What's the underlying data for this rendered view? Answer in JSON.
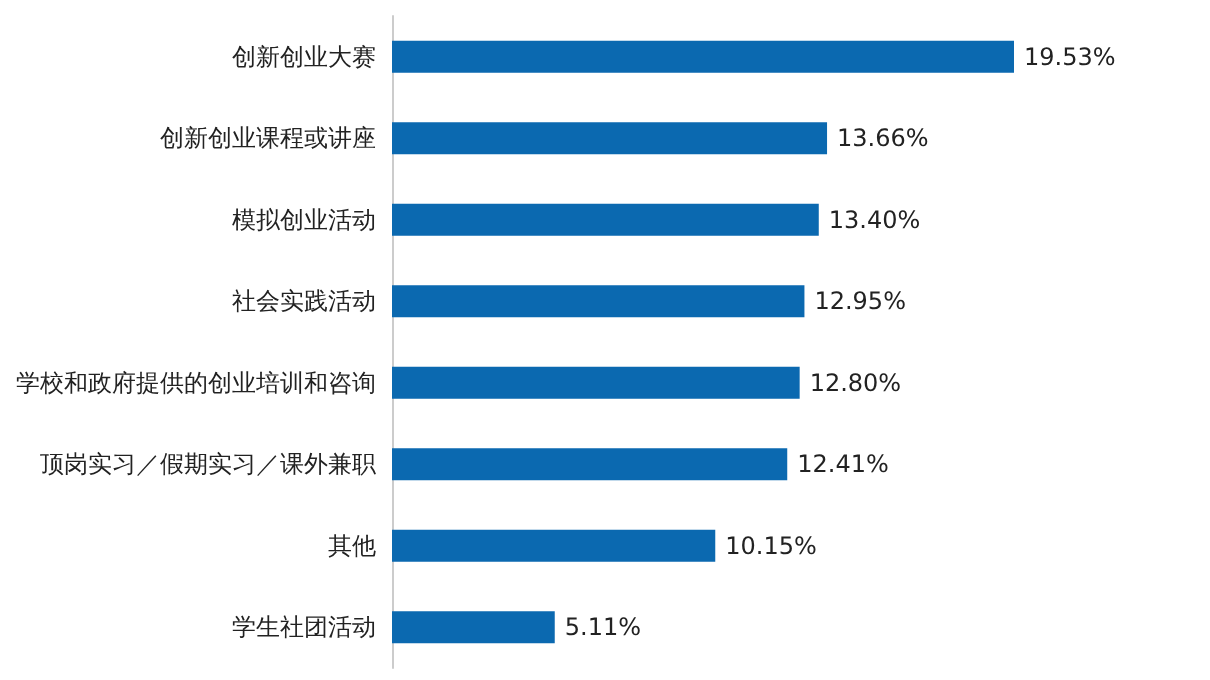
{
  "chart_data": {
    "type": "bar",
    "orientation": "horizontal",
    "categories": [
      "创新创业大赛",
      "创新创业课程或讲座",
      "模拟创业活动",
      "社会实践活动",
      "学校和政府提供的创业培训和咨询",
      "顶岗实习／假期实习／课外兼职",
      "其他",
      "学生社团活动"
    ],
    "values": [
      19.53,
      13.66,
      13.4,
      12.95,
      12.8,
      12.41,
      10.15,
      5.11
    ],
    "value_labels": [
      "19.53%",
      "13.66%",
      "13.40%",
      "12.95%",
      "12.80%",
      "12.41%",
      "10.15%",
      "5.11%"
    ],
    "color": "#0b69b0"
  }
}
